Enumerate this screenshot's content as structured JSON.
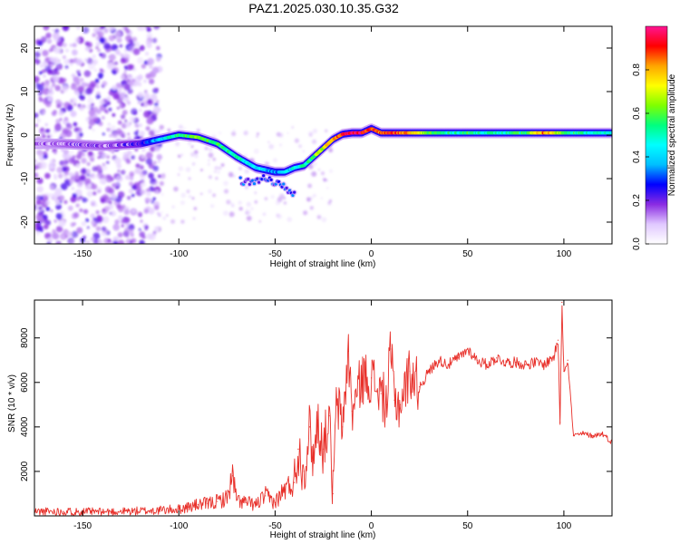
{
  "page_title": "PAZ1.2025.030.10.35.G32",
  "colors": {
    "snr_line": "#e8302a",
    "axis": "#000000",
    "background": "#ffffff"
  },
  "colorbar_gradient": [
    "#ffffff",
    "#e0c8ff",
    "#8a2be2",
    "#0000ff",
    "#00bfff",
    "#00ffff",
    "#00ff7f",
    "#7fff00",
    "#ffff00",
    "#ffa500",
    "#ff0000",
    "#ff1493"
  ],
  "chart_data": [
    {
      "type": "heatmap",
      "title": "PAZ1.2025.030.10.35.G32",
      "xlabel": "Height of straight line (km)",
      "ylabel": "Frequency (Hz)",
      "xlim": [
        -175,
        125
      ],
      "ylim": [
        -25,
        25
      ],
      "x_ticks": [
        -150,
        -100,
        -50,
        0,
        50,
        100
      ],
      "y_ticks": [
        -20,
        -10,
        0,
        10,
        20
      ],
      "colorbar": {
        "label": "Normalized spectral amplitude",
        "range": [
          0,
          1
        ],
        "ticks": [
          0.0,
          0.2,
          0.4,
          0.6,
          0.8
        ]
      },
      "ridge": {
        "x": [
          -175,
          -160,
          -140,
          -120,
          -110,
          -100,
          -90,
          -80,
          -70,
          -60,
          -50,
          -45,
          -40,
          -35,
          -30,
          -25,
          -20,
          -15,
          -10,
          -5,
          0,
          5,
          10,
          20,
          30,
          40,
          50,
          60,
          70,
          80,
          90,
          100,
          110,
          125
        ],
        "freq": [
          -2,
          -2,
          -2.5,
          -2,
          -1,
          0,
          -0.5,
          -2,
          -5,
          -7.5,
          -8.5,
          -8.5,
          -7.5,
          -7,
          -5,
          -3,
          -1,
          0.2,
          0.5,
          0.5,
          1.5,
          0.5,
          0.5,
          0.5,
          0.5,
          0.5,
          0.5,
          0.5,
          0.5,
          0.5,
          0.5,
          0.5,
          0.5,
          0.5
        ],
        "amplitude": [
          0.1,
          0.15,
          0.15,
          0.2,
          0.4,
          0.55,
          0.6,
          0.55,
          0.5,
          0.4,
          0.35,
          0.4,
          0.45,
          0.5,
          0.6,
          0.7,
          0.85,
          0.9,
          0.95,
          0.95,
          0.9,
          0.85,
          0.9,
          0.8,
          0.6,
          0.5,
          0.55,
          0.5,
          0.5,
          0.55,
          0.85,
          0.6,
          0.5,
          0.45
        ]
      },
      "secondary_branch": {
        "x": [
          -68,
          -60,
          -55,
          -50,
          -45,
          -40
        ],
        "freq": [
          -10.5,
          -11,
          -9.5,
          -11,
          -12,
          -13.5
        ]
      }
    },
    {
      "type": "line",
      "xlabel": "Height of straight line (km)",
      "ylabel": "SNR (10 * v/v)",
      "xlim": [
        -175,
        125
      ],
      "ylim": [
        0,
        9700
      ],
      "x_ticks": [
        -150,
        -100,
        -50,
        0,
        50,
        100
      ],
      "y_ticks": [
        2000,
        4000,
        6000,
        8000
      ],
      "series": [
        {
          "x": [
            -175,
            -160,
            -140,
            -120,
            -110,
            -100,
            -95,
            -90,
            -85,
            -80,
            -75,
            -72,
            -70,
            -65,
            -60,
            -55,
            -50,
            -45,
            -40,
            -38,
            -35,
            -32,
            -30,
            -28,
            -25,
            -22,
            -20,
            -18,
            -15,
            -12,
            -10,
            -5,
            0,
            5,
            8,
            10,
            12,
            15,
            20,
            25,
            30,
            35,
            40,
            45,
            48,
            50,
            55,
            60,
            65,
            70,
            75,
            80,
            85,
            90,
            95,
            97,
            98,
            99,
            100,
            102,
            105,
            110,
            115,
            120,
            125
          ],
          "y": [
            200,
            200,
            180,
            220,
            250,
            300,
            400,
            500,
            550,
            650,
            800,
            1800,
            700,
            600,
            500,
            900,
            600,
            1200,
            1500,
            3000,
            2000,
            4000,
            2500,
            4300,
            3000,
            4500,
            1000,
            5200,
            4000,
            7400,
            4700,
            6200,
            6200,
            5500,
            5000,
            7500,
            5200,
            5000,
            6500,
            5800,
            6500,
            7000,
            6800,
            7100,
            7300,
            7500,
            7000,
            6800,
            7100,
            6900,
            6900,
            6800,
            6900,
            6800,
            7200,
            7900,
            4200,
            9600,
            6500,
            7000,
            3600,
            3700,
            3600,
            3700,
            3300
          ]
        }
      ]
    }
  ]
}
